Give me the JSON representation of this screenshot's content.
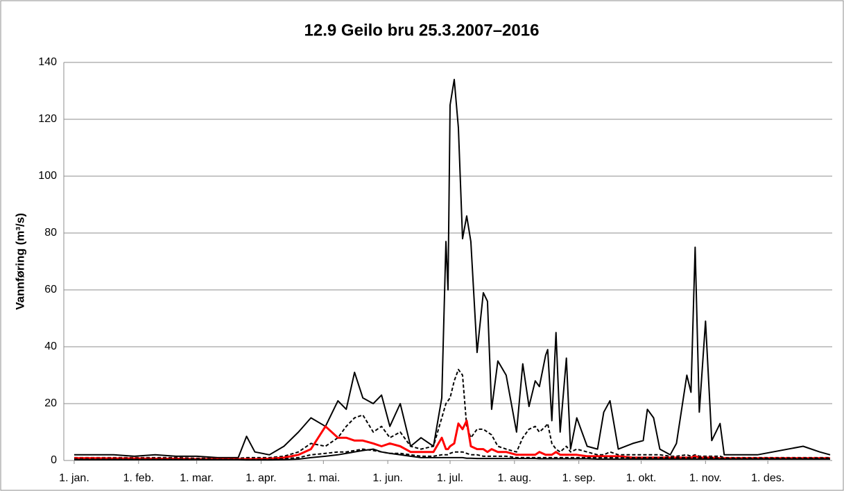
{
  "chart_data": {
    "type": "line",
    "title": "12.9 Geilo bru 25.3.2007–2016",
    "y_label": "Vannføring (m³/s)",
    "x": [
      1,
      10,
      20,
      30,
      40,
      50,
      60,
      70,
      80,
      84,
      88,
      95,
      102,
      109,
      115,
      122,
      128,
      132,
      136,
      140,
      145,
      149,
      153,
      158,
      163,
      168,
      174,
      178,
      180,
      181,
      182,
      184,
      186,
      188,
      190,
      192,
      195,
      198,
      200,
      202,
      205,
      209,
      214,
      217,
      220,
      223,
      225,
      228,
      229,
      231,
      233,
      235,
      238,
      240,
      243,
      248,
      253,
      256,
      259,
      263,
      270,
      275,
      277,
      280,
      283,
      288,
      291,
      296,
      298,
      300,
      302,
      305,
      308,
      312,
      314,
      330,
      352,
      360,
      365
    ],
    "xlim": [
      -4,
      366
    ],
    "xticks": [
      {
        "value": 1,
        "label": "1. jan."
      },
      {
        "value": 32,
        "label": "1. feb."
      },
      {
        "value": 60,
        "label": "1. mar."
      },
      {
        "value": 91,
        "label": "1. apr."
      },
      {
        "value": 121,
        "label": "1. mai."
      },
      {
        "value": 152,
        "label": "1. jun."
      },
      {
        "value": 182,
        "label": "1. jul."
      },
      {
        "value": 213,
        "label": "1. aug."
      },
      {
        "value": 244,
        "label": "1. sep."
      },
      {
        "value": 274,
        "label": "1. okt."
      },
      {
        "value": 305,
        "label": "1. nov."
      },
      {
        "value": 335,
        "label": "1. des."
      }
    ],
    "ylim": [
      0,
      140
    ],
    "yticks": [
      0,
      20,
      40,
      60,
      80,
      100,
      120,
      140
    ],
    "grid": true,
    "series": [
      {
        "color": "#000000",
        "dashed": false,
        "width": 2,
        "values": [
          2,
          2,
          2,
          1.5,
          2,
          1.5,
          1.5,
          1,
          1,
          8.5,
          3,
          2,
          5,
          10,
          15,
          12,
          21,
          18,
          31,
          22,
          20,
          23,
          12,
          20,
          5,
          8,
          5,
          22,
          77,
          60,
          125,
          134,
          117,
          78,
          86,
          77,
          38,
          59,
          56,
          18,
          35,
          30,
          10,
          34,
          19,
          28,
          26,
          37,
          39,
          14,
          45,
          10,
          36,
          4,
          15,
          5,
          4,
          17,
          21,
          4,
          6,
          7,
          18,
          15,
          4,
          2,
          6,
          30,
          24,
          75,
          17,
          49,
          7,
          13,
          2,
          2,
          5,
          3,
          2
        ]
      },
      {
        "color": "#000000",
        "dashed": true,
        "width": 2,
        "values": [
          1,
          1,
          1,
          1,
          1,
          1,
          0.8,
          0.8,
          0.8,
          1,
          1,
          1,
          1.5,
          3,
          6,
          5,
          8,
          12,
          15,
          16,
          10,
          12,
          8,
          10,
          5,
          4,
          5,
          15,
          20,
          21,
          22,
          28,
          32,
          30,
          12,
          8,
          11,
          11,
          10,
          9,
          5,
          4,
          3,
          8,
          11,
          12,
          10,
          12,
          13,
          6,
          4,
          3,
          5,
          3,
          4,
          3,
          2,
          2,
          3,
          2,
          2,
          2,
          2,
          2,
          2,
          1.5,
          1.5,
          2,
          1.5,
          2,
          1.5,
          1.5,
          1.5,
          1.5,
          1,
          1,
          1,
          1,
          1
        ]
      },
      {
        "color": "#ff0000",
        "dashed": false,
        "width": 3,
        "values": [
          0.8,
          0.8,
          0.7,
          0.7,
          0.6,
          0.6,
          0.5,
          0.5,
          0.5,
          0.5,
          0.5,
          0.6,
          1,
          2,
          4,
          12,
          8,
          8,
          7,
          7,
          6,
          5,
          6,
          5,
          3,
          3,
          3,
          8,
          4,
          4,
          5,
          6,
          13,
          11,
          14,
          5,
          4,
          4,
          3,
          4,
          3,
          3,
          2,
          2,
          2,
          2,
          3,
          2,
          2,
          2,
          3,
          2,
          2,
          2,
          2,
          1.5,
          1.5,
          1.5,
          1.5,
          1.5,
          1,
          1,
          1,
          1,
          1,
          1,
          1,
          1,
          1,
          1.5,
          1,
          1,
          1,
          0.8,
          0.8,
          0.8,
          0.8,
          0.8,
          0.8
        ]
      },
      {
        "color": "#000000",
        "dashed": true,
        "width": 2,
        "values": [
          0.5,
          0.5,
          0.5,
          0.5,
          0.5,
          0.5,
          0.5,
          0.4,
          0.4,
          0.3,
          0.3,
          0.4,
          0.6,
          1,
          2,
          2.5,
          3,
          3,
          3.5,
          4,
          3.5,
          3,
          2.5,
          2.5,
          2,
          1.5,
          1.5,
          2,
          2,
          2,
          2.5,
          3,
          3,
          3,
          2.5,
          2,
          2,
          1.5,
          1.5,
          1.5,
          1.5,
          1.5,
          1,
          1,
          1,
          1,
          1,
          1,
          1,
          1,
          1,
          1,
          1,
          1,
          1,
          1,
          1,
          1,
          1,
          1,
          1,
          1,
          1,
          1,
          1,
          1,
          1,
          1,
          1,
          1,
          1,
          1,
          1,
          0.8,
          0.8,
          0.8,
          0.8,
          0.8,
          0.8
        ]
      },
      {
        "color": "#000000",
        "dashed": false,
        "width": 2,
        "values": [
          0.3,
          0.3,
          0.3,
          0.3,
          0.3,
          0.3,
          0.3,
          0.3,
          0.3,
          0.2,
          0.2,
          0.2,
          0.3,
          0.5,
          1,
          1.5,
          2,
          2.5,
          3,
          3.5,
          4,
          3,
          2.5,
          2,
          1.5,
          1,
          1,
          1,
          1,
          1,
          1,
          1,
          1,
          1,
          0.8,
          0.8,
          0.7,
          0.7,
          0.7,
          0.7,
          0.7,
          0.7,
          0.7,
          0.7,
          0.7,
          0.7,
          0.6,
          0.6,
          0.6,
          0.6,
          0.6,
          0.6,
          0.6,
          0.6,
          0.6,
          0.6,
          0.5,
          0.5,
          0.5,
          0.5,
          0.5,
          0.5,
          0.5,
          0.5,
          0.5,
          0.5,
          0.5,
          0.5,
          0.5,
          0.5,
          0.5,
          0.5,
          0.5,
          0.5,
          0.5,
          0.5,
          0.5,
          0.5,
          0.5
        ]
      }
    ]
  }
}
